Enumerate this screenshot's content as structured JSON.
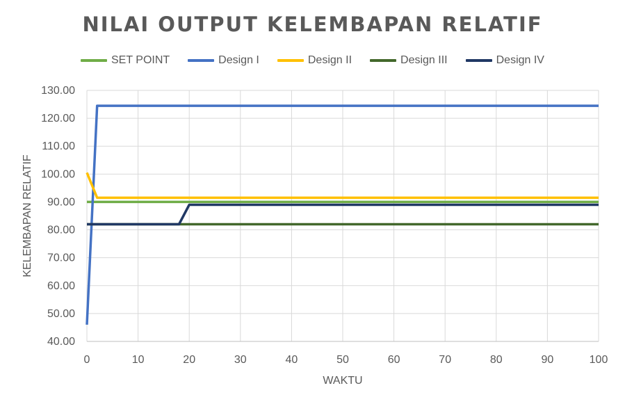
{
  "chart_data": {
    "type": "line",
    "title": "NILAI OUTPUT KELEMBAPAN RELATIF",
    "xlabel": "WAKTU",
    "ylabel": "KELEMBAPAN RELATIF",
    "xlim": [
      0,
      100
    ],
    "ylim": [
      40,
      130
    ],
    "xticks": [
      0,
      10,
      20,
      30,
      40,
      50,
      60,
      70,
      80,
      90,
      100
    ],
    "xtick_labels": [
      "0",
      "10",
      "20",
      "30",
      "40",
      "50",
      "60",
      "70",
      "80",
      "90",
      "100"
    ],
    "yticks": [
      40,
      50,
      60,
      70,
      80,
      90,
      100,
      110,
      120,
      130
    ],
    "ytick_labels": [
      "40.00",
      "50.00",
      "60.00",
      "70.00",
      "80.00",
      "90.00",
      "100.00",
      "110.00",
      "120.00",
      "130.00"
    ],
    "grid": true,
    "legend_position": "top",
    "series": [
      {
        "name": "SET POINT",
        "color": "#70AD47",
        "x": [
          0,
          100
        ],
        "y": [
          90,
          90
        ]
      },
      {
        "name": "Design I",
        "color": "#4472C4",
        "x": [
          0,
          2,
          100
        ],
        "y": [
          46,
          124.5,
          124.5
        ]
      },
      {
        "name": "Design II",
        "color": "#FFC000",
        "x": [
          0,
          2,
          100
        ],
        "y": [
          100.5,
          91.5,
          91.5
        ]
      },
      {
        "name": "Design III",
        "color": "#43682B",
        "x": [
          0,
          100
        ],
        "y": [
          82,
          82
        ]
      },
      {
        "name": "Design IV",
        "color": "#203864",
        "x": [
          0,
          18,
          20,
          100
        ],
        "y": [
          82,
          82,
          89,
          89
        ]
      }
    ]
  }
}
